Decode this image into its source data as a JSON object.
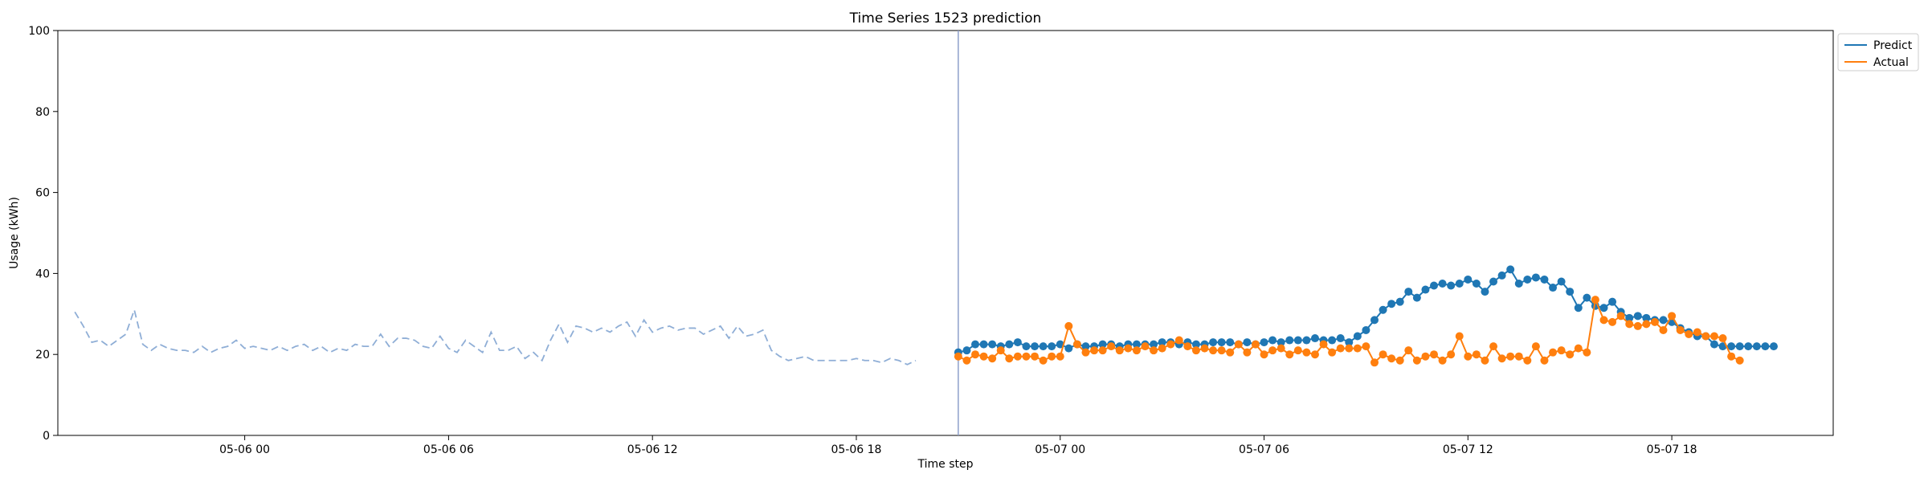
{
  "chart_data": {
    "type": "line",
    "title": "Time Series 1523 prediction",
    "xlabel": "Time step",
    "ylabel": "Usage (kWh)",
    "ylim": [
      0,
      100
    ],
    "yticks": [
      0,
      20,
      40,
      60,
      80,
      100
    ],
    "xlim": [
      "2024-05-05 18:30",
      "2024-05-07 22:45"
    ],
    "xticks": [
      {
        "t": "2024-05-06 00:00",
        "label": "05-06 00"
      },
      {
        "t": "2024-05-06 06:00",
        "label": "05-06 06"
      },
      {
        "t": "2024-05-06 12:00",
        "label": "05-06 12"
      },
      {
        "t": "2024-05-06 18:00",
        "label": "05-06 18"
      },
      {
        "t": "2024-05-07 00:00",
        "label": "05-07 00"
      },
      {
        "t": "2024-05-07 06:00",
        "label": "05-07 06"
      },
      {
        "t": "2024-05-07 12:00",
        "label": "05-07 12"
      },
      {
        "t": "2024-05-07 18:00",
        "label": "05-07 18"
      }
    ],
    "grid": false,
    "legend_position": "upper right outside",
    "forecast_start": "2024-05-06 21:00",
    "history": {
      "start": "2024-05-05 19:00",
      "interval_minutes": 15,
      "color": "#8faed6",
      "style": "dashed",
      "values": [
        30.5,
        27,
        23,
        23.5,
        22,
        23.5,
        25,
        31,
        22.5,
        21,
        22.5,
        21.5,
        21,
        21,
        20.5,
        22,
        20.5,
        21.5,
        22,
        23.5,
        21.5,
        22,
        21.5,
        21,
        22,
        21,
        22,
        22.5,
        21,
        22,
        20.5,
        21.5,
        21,
        22.5,
        22,
        22,
        25,
        22,
        24,
        24,
        23.5,
        22,
        21.5,
        24.5,
        21.5,
        20.5,
        23.5,
        22,
        20.5,
        25.5,
        21,
        21,
        22,
        19,
        20.5,
        18.5,
        23.5,
        27.5,
        23,
        27,
        26.5,
        25.5,
        26.5,
        25.5,
        27,
        28,
        24.5,
        28.5,
        25.5,
        26.5,
        27,
        26,
        26.5,
        26.5,
        25,
        26,
        27,
        24,
        27,
        24.5,
        25,
        26,
        21,
        19.5,
        18.5,
        19,
        19.5,
        18.5,
        18.5,
        18.5,
        18.5,
        18.5,
        19,
        18.5,
        18.5,
        18,
        19,
        18.5,
        17.5,
        18.5
      ]
    },
    "series_start": "2024-05-06 21:00",
    "series_interval_minutes": 15,
    "series": [
      {
        "name": "Predict",
        "color": "#1f77b4",
        "values": [
          20.5,
          21,
          22.5,
          22.5,
          22.5,
          22,
          22.5,
          23,
          22,
          22,
          22,
          22,
          22.5,
          21.5,
          22.5,
          22,
          22,
          22.5,
          22.5,
          22,
          22.5,
          22.5,
          22.5,
          22.5,
          23,
          23,
          22.5,
          23,
          22.5,
          22.5,
          23,
          23,
          23,
          22.5,
          23,
          22.5,
          23,
          23.5,
          23,
          23.5,
          23.5,
          23.5,
          24,
          23.5,
          23.5,
          24,
          23,
          24.5,
          26,
          28.5,
          31,
          32.5,
          33,
          35.5,
          34,
          36,
          37,
          37.5,
          37,
          37.5,
          38.5,
          37.5,
          35.5,
          38,
          39.5,
          41,
          37.5,
          38.5,
          39,
          38.5,
          36.5,
          38,
          35.5,
          31.5,
          34,
          32,
          31.5,
          33,
          30.5,
          29,
          29.5,
          29,
          28.5,
          28.5,
          28,
          26.5,
          25.5,
          24.5,
          24.5,
          22.5,
          22,
          22,
          22,
          22,
          22,
          22,
          22
        ]
      },
      {
        "name": "Actual",
        "color": "#ff7f0e",
        "values": [
          19.5,
          18.5,
          20,
          19.5,
          19,
          21,
          19,
          19.5,
          19.5,
          19.5,
          18.5,
          19.5,
          19.5,
          27,
          22.5,
          20.5,
          21,
          21,
          22,
          21,
          21.5,
          21,
          22,
          21,
          21.5,
          22.5,
          23.5,
          22,
          21,
          21.5,
          21,
          21,
          20.5,
          22.5,
          20.5,
          22.5,
          20,
          21,
          21.5,
          20,
          21,
          20.5,
          20,
          22.5,
          20.5,
          21.5,
          21.5,
          21.5,
          22,
          18,
          20,
          19,
          18.5,
          21,
          18.5,
          19.5,
          20,
          18.5,
          20,
          24.5,
          19.5,
          20,
          18.5,
          22,
          19,
          19.5,
          19.5,
          18.5,
          22,
          18.5,
          20.5,
          21,
          20,
          21.5,
          20.5,
          33.5,
          28.5,
          28,
          29.5,
          27.5,
          27,
          27.5,
          28,
          26,
          29.5,
          26,
          25,
          25.5,
          24.5,
          24.5,
          24,
          19.5,
          18.5
        ]
      }
    ]
  }
}
